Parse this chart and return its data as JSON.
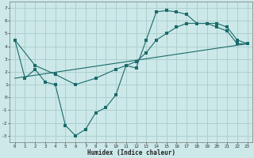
{
  "xlabel": "Humidex (Indice chaleur)",
  "bg_color": "#cce8e8",
  "grid_color": "#aacccc",
  "line_color": "#1a6b6b",
  "xlim": [
    -0.5,
    23.5
  ],
  "ylim": [
    -3.5,
    7.5
  ],
  "xticks": [
    0,
    1,
    2,
    3,
    4,
    5,
    6,
    7,
    8,
    9,
    10,
    11,
    12,
    13,
    14,
    15,
    16,
    17,
    18,
    19,
    20,
    21,
    22,
    23
  ],
  "yticks": [
    -3,
    -2,
    -1,
    0,
    1,
    2,
    3,
    4,
    5,
    6,
    7
  ],
  "line1_x": [
    0,
    1,
    2,
    3,
    4,
    5,
    6,
    7,
    8,
    9,
    10,
    11,
    12,
    13,
    14,
    15,
    16,
    17,
    18,
    19,
    20,
    21,
    22,
    23
  ],
  "line1_y": [
    4.5,
    1.5,
    2.2,
    1.2,
    1.0,
    -2.2,
    -3.0,
    -2.5,
    -1.2,
    -0.8,
    0.2,
    2.5,
    2.3,
    4.5,
    6.7,
    6.8,
    6.7,
    6.5,
    5.8,
    5.8,
    5.5,
    5.2,
    4.2,
    4.2
  ],
  "line2_x": [
    0,
    23
  ],
  "line2_y": [
    1.5,
    4.2
  ],
  "line3_x": [
    0,
    2,
    4,
    6,
    8,
    10,
    11,
    12,
    13,
    14,
    15,
    16,
    17,
    18,
    19,
    20,
    21,
    22,
    23
  ],
  "line3_y": [
    4.5,
    2.5,
    1.8,
    1.0,
    1.5,
    2.2,
    2.5,
    2.8,
    3.5,
    4.5,
    5.0,
    5.5,
    5.8,
    5.8,
    5.8,
    5.8,
    5.5,
    4.5,
    4.2
  ]
}
